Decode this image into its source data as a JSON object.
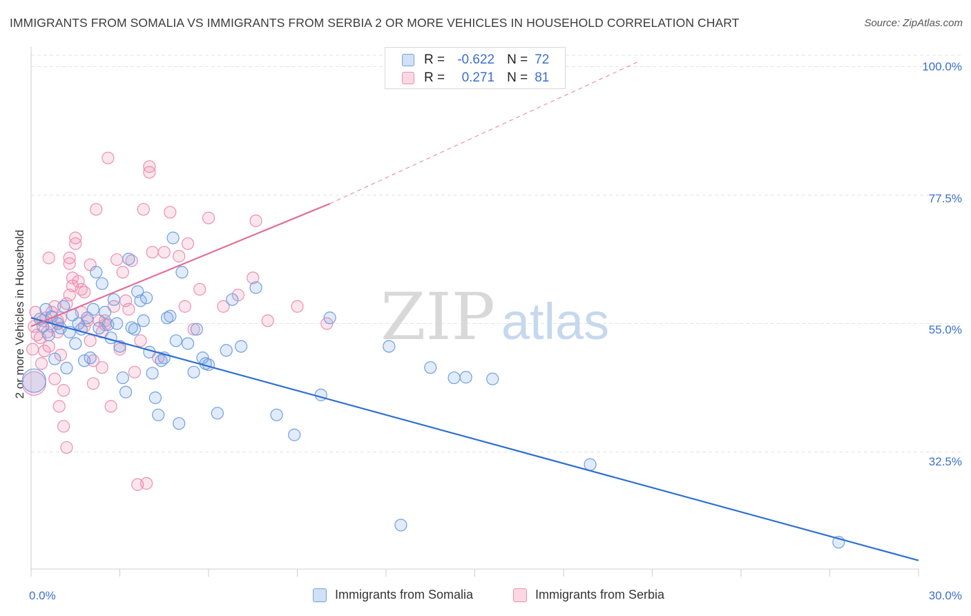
{
  "title": "IMMIGRANTS FROM SOMALIA VS IMMIGRANTS FROM SERBIA 2 OR MORE VEHICLES IN HOUSEHOLD CORRELATION CHART",
  "source": "Source: ZipAtlas.com",
  "watermark": {
    "zip": "ZIP",
    "atlas": "atlas"
  },
  "legend": {
    "rows": [
      {
        "r_label": "R =",
        "r_value": "-0.622",
        "n_label": "N =",
        "n_value": "72"
      },
      {
        "r_label": "R =",
        "r_value": "0.271",
        "n_label": "N =",
        "n_value": "81"
      }
    ]
  },
  "colors": {
    "somalia_fill": "rgba(120,165,230,0.22)",
    "somalia_stroke": "#6f9fe0",
    "somalia_line": "#2d6fd0",
    "serbia_fill": "rgba(240,140,175,0.22)",
    "serbia_stroke": "#ec8fb0",
    "serbia_line": "#e07098",
    "tick_text": "#3a6fd0",
    "grid": "#e3e3e3"
  },
  "chart_data": {
    "type": "scatter",
    "xlabel": "",
    "ylabel": "2 or more Vehicles in Household",
    "xlim": [
      0,
      30
    ],
    "ylim": [
      12,
      102
    ],
    "x_tick_labels": [
      "0.0%",
      "30.0%"
    ],
    "y_ticks": [
      32.5,
      55.0,
      77.5,
      100.0
    ],
    "y_tick_labels": [
      "32.5%",
      "55.0%",
      "77.5%",
      "100.0%"
    ],
    "grid": true,
    "legend_position": "bottom-center",
    "series": [
      {
        "name": "Immigrants from Somalia",
        "R": -0.622,
        "N": 72,
        "trend": {
          "x": [
            0,
            30
          ],
          "y": [
            56.0,
            13.5
          ]
        },
        "points": [
          [
            0.3,
            55.8
          ],
          [
            0.4,
            54.5
          ],
          [
            0.5,
            57.5
          ],
          [
            0.6,
            53.0
          ],
          [
            0.7,
            56.2
          ],
          [
            0.8,
            48.8
          ],
          [
            0.9,
            55.0
          ],
          [
            1.0,
            54.2
          ],
          [
            1.1,
            58.0
          ],
          [
            1.2,
            47.2
          ],
          [
            1.3,
            53.5
          ],
          [
            1.4,
            56.5
          ],
          [
            1.5,
            51.5
          ],
          [
            1.6,
            55.0
          ],
          [
            1.7,
            54.0
          ],
          [
            1.8,
            48.5
          ],
          [
            1.9,
            56.0
          ],
          [
            2.0,
            49.0
          ],
          [
            2.1,
            57.5
          ],
          [
            2.2,
            64.0
          ],
          [
            2.3,
            54.2
          ],
          [
            2.4,
            62.0
          ],
          [
            2.5,
            57.0
          ],
          [
            2.6,
            54.8
          ],
          [
            2.7,
            52.5
          ],
          [
            2.8,
            59.2
          ],
          [
            2.9,
            55.0
          ],
          [
            3.0,
            51.0
          ],
          [
            3.1,
            45.5
          ],
          [
            3.2,
            43.0
          ],
          [
            3.3,
            66.3
          ],
          [
            3.4,
            54.3
          ],
          [
            3.5,
            54.0
          ],
          [
            3.6,
            60.6
          ],
          [
            3.7,
            59.0
          ],
          [
            3.8,
            55.5
          ],
          [
            3.9,
            59.5
          ],
          [
            4.0,
            50.0
          ],
          [
            4.1,
            46.3
          ],
          [
            4.2,
            42.0
          ],
          [
            4.3,
            39.0
          ],
          [
            4.4,
            48.5
          ],
          [
            4.5,
            49.0
          ],
          [
            4.6,
            56.0
          ],
          [
            4.7,
            56.3
          ],
          [
            4.8,
            70.0
          ],
          [
            4.9,
            52.0
          ],
          [
            5.0,
            37.5
          ],
          [
            5.1,
            64.0
          ],
          [
            5.3,
            51.5
          ],
          [
            5.5,
            46.5
          ],
          [
            5.6,
            54.0
          ],
          [
            5.8,
            49.0
          ],
          [
            5.9,
            48.0
          ],
          [
            6.0,
            47.8
          ],
          [
            6.3,
            39.3
          ],
          [
            6.6,
            50.3
          ],
          [
            6.8,
            59.2
          ],
          [
            7.1,
            51.0
          ],
          [
            7.6,
            61.3
          ],
          [
            8.3,
            39.0
          ],
          [
            8.9,
            35.5
          ],
          [
            9.8,
            42.5
          ],
          [
            10.1,
            56.0
          ],
          [
            12.1,
            51.0
          ],
          [
            12.5,
            19.7
          ],
          [
            13.5,
            47.3
          ],
          [
            14.3,
            45.5
          ],
          [
            14.7,
            45.6
          ],
          [
            15.6,
            45.3
          ],
          [
            18.9,
            30.3
          ],
          [
            27.3,
            16.7
          ]
        ],
        "large_point": [
          0.1,
          45.0
        ]
      },
      {
        "name": "Immigrants from Serbia",
        "R": 0.271,
        "N": 81,
        "trend": {
          "x": [
            0,
            10.1
          ],
          "y": [
            54.5,
            76.0
          ]
        },
        "trend_extension": {
          "x": [
            10.1,
            20.5
          ],
          "y": [
            76.0,
            100.8
          ]
        },
        "points": [
          [
            0.05,
            50.5
          ],
          [
            0.1,
            54.5
          ],
          [
            0.15,
            57.0
          ],
          [
            0.2,
            53.0
          ],
          [
            0.3,
            52.5
          ],
          [
            0.35,
            48.0
          ],
          [
            0.4,
            55.5
          ],
          [
            0.45,
            50.2
          ],
          [
            0.5,
            56.0
          ],
          [
            0.55,
            53.5
          ],
          [
            0.6,
            51.0
          ],
          [
            0.6,
            66.5
          ],
          [
            0.7,
            57.0
          ],
          [
            0.7,
            54.5
          ],
          [
            0.8,
            58.0
          ],
          [
            0.8,
            45.3
          ],
          [
            0.9,
            55.5
          ],
          [
            0.9,
            53.5
          ],
          [
            0.95,
            40.5
          ],
          [
            1.0,
            49.5
          ],
          [
            1.0,
            56.0
          ],
          [
            1.1,
            37.0
          ],
          [
            1.1,
            43.3
          ],
          [
            1.2,
            33.3
          ],
          [
            1.2,
            58.5
          ],
          [
            1.3,
            65.5
          ],
          [
            1.3,
            66.5
          ],
          [
            1.3,
            60.0
          ],
          [
            1.4,
            61.6
          ],
          [
            1.4,
            63.0
          ],
          [
            1.5,
            69.0
          ],
          [
            1.5,
            70.0
          ],
          [
            1.6,
            62.4
          ],
          [
            1.7,
            61.0
          ],
          [
            1.7,
            57.0
          ],
          [
            1.8,
            60.5
          ],
          [
            1.8,
            54.5
          ],
          [
            1.9,
            55.5
          ],
          [
            2.0,
            65.3
          ],
          [
            2.0,
            52.0
          ],
          [
            2.1,
            48.5
          ],
          [
            2.1,
            44.5
          ],
          [
            2.2,
            75.0
          ],
          [
            2.3,
            55.5
          ],
          [
            2.4,
            53.5
          ],
          [
            2.4,
            47.3
          ],
          [
            2.5,
            54.8
          ],
          [
            2.5,
            55.5
          ],
          [
            2.6,
            84.0
          ],
          [
            2.7,
            40.5
          ],
          [
            2.8,
            58.0
          ],
          [
            2.9,
            66.2
          ],
          [
            3.0,
            50.5
          ],
          [
            3.1,
            64.0
          ],
          [
            3.2,
            59.0
          ],
          [
            3.3,
            57.5
          ],
          [
            3.4,
            66.0
          ],
          [
            3.5,
            46.5
          ],
          [
            3.6,
            26.8
          ],
          [
            3.7,
            52.0
          ],
          [
            3.8,
            75.0
          ],
          [
            3.9,
            27.0
          ],
          [
            4.0,
            81.5
          ],
          [
            4.0,
            82.5
          ],
          [
            4.1,
            67.5
          ],
          [
            4.3,
            49.0
          ],
          [
            4.5,
            67.5
          ],
          [
            4.7,
            74.5
          ],
          [
            5.0,
            66.8
          ],
          [
            5.2,
            58.0
          ],
          [
            5.3,
            69.0
          ],
          [
            5.5,
            54.0
          ],
          [
            5.7,
            61.0
          ],
          [
            6.0,
            73.5
          ],
          [
            6.5,
            58.0
          ],
          [
            7.0,
            60.0
          ],
          [
            7.5,
            63.0
          ],
          [
            8.0,
            55.5
          ],
          [
            9.0,
            58.0
          ],
          [
            10.0,
            55.0
          ],
          [
            7.6,
            73.0
          ]
        ],
        "large_point": [
          0.1,
          44.5
        ]
      }
    ]
  }
}
